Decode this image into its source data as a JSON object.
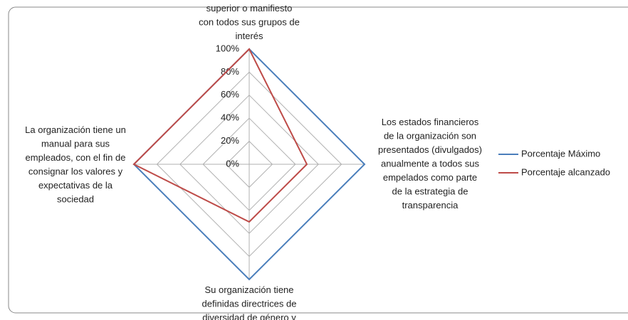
{
  "chart_data": {
    "type": "radar",
    "categories": [
      "superior o manifiesto\ncon todos sus grupos de\ninterés",
      "Los estados financieros\nde la organización son\npresentados (divulgados)\nanualmente a todos sus\nempelados como parte\nde la estrategia de\ntransparencia",
      "Su organización tiene\ndefinidas directrices de\ndiversidad de género y",
      "La organización tiene un\nmanual para sus\nempleados, con el fin de\nconsignar los valores y\nexpectativas de la\nsociedad"
    ],
    "series": [
      {
        "name": "Porcentaje Máximo",
        "color": "#4a7ebb",
        "values": [
          100,
          100,
          100,
          100
        ]
      },
      {
        "name": "Porcentaje alcanzado",
        "color": "#be4b48",
        "values": [
          100,
          50,
          50,
          100
        ]
      }
    ],
    "rlim": [
      0,
      100
    ],
    "rticks": [
      {
        "value": 0,
        "label": "0%"
      },
      {
        "value": 20,
        "label": "20%"
      },
      {
        "value": 40,
        "label": "40%"
      },
      {
        "value": 60,
        "label": "60%"
      },
      {
        "value": 80,
        "label": "80%"
      },
      {
        "value": 100,
        "label": "100%"
      }
    ],
    "grid": true,
    "legend": "right"
  }
}
